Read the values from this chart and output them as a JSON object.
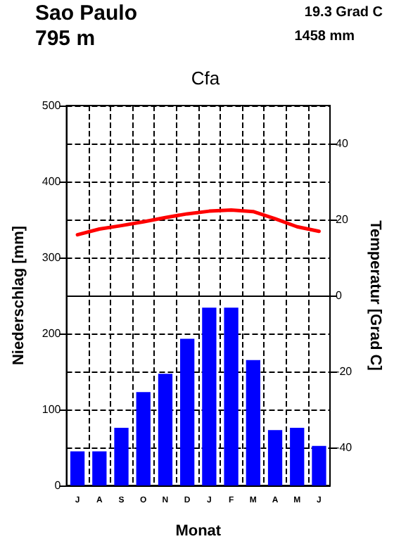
{
  "chart_data": {
    "type": "bar",
    "title": "Cfa",
    "annotations": [
      "Sao Paulo",
      "795 m",
      "19.3 Grad C",
      "1458 mm"
    ],
    "xlabel": "Monat",
    "ylabel": "Niederschlag [mm]",
    "y2label": "Temperatur [Grad C]",
    "categories": [
      "J",
      "A",
      "S",
      "O",
      "N",
      "D",
      "J",
      "F",
      "M",
      "A",
      "M",
      "J"
    ],
    "series": [
      {
        "color": "#0000ff",
        "values": [
          45,
          45,
          76,
          123,
          147,
          193,
          234,
          234,
          165,
          73,
          76,
          52
        ]
      },
      {
        "type": "line",
        "axis": "y2",
        "color": "#ff0000",
        "values": [
          16.0,
          17.5,
          18.4,
          19.4,
          20.5,
          21.5,
          22.2,
          22.5,
          22.1,
          20.2,
          18.1,
          16.9
        ]
      }
    ],
    "ylim": [
      0,
      500
    ],
    "yticks": [
      0,
      100,
      200,
      300,
      400,
      500
    ],
    "y2lim": [
      -50,
      50
    ],
    "y2ticks": [
      -40,
      -20,
      0,
      20,
      40
    ],
    "ref_lines": [
      {
        "axis": "y2",
        "value": 0,
        "color": "#000000",
        "line_style": "solid"
      }
    ],
    "grid": true,
    "marker": "none",
    "line_style": "solid"
  }
}
